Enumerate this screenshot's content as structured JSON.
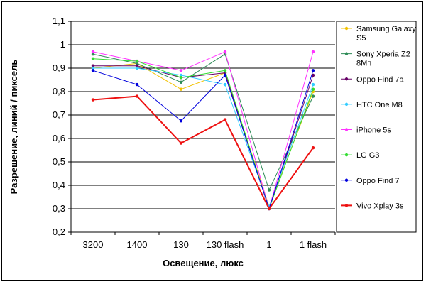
{
  "chart_data": {
    "type": "line",
    "xlabel": "Освещение, люкс",
    "ylabel": "Разрешение, линий / пиксель",
    "categories": [
      "3200",
      "1400",
      "130",
      "130 flash",
      "1",
      "1 flash"
    ],
    "ylim": [
      0.2,
      1.1
    ],
    "ytick_step": 0.1,
    "ytick_labels": [
      "0,2",
      "0,3",
      "0,4",
      "0,5",
      "0,6",
      "0,7",
      "0,8",
      "0,9",
      "1",
      "1,1"
    ],
    "grid": "horizontal",
    "legend_position": "right",
    "series": [
      {
        "name": "Samsung Galaxy S5",
        "color": "#f2c200",
        "width": 1,
        "values": [
          0.9,
          0.92,
          0.81,
          0.88,
          0.31,
          0.8
        ]
      },
      {
        "name": "Sony Xperia Z2 8Мп",
        "color": "#2e8b57",
        "width": 1,
        "values": [
          0.96,
          0.92,
          0.84,
          0.96,
          0.38,
          0.78
        ]
      },
      {
        "name": "Oppo Find 7a",
        "color": "#660066",
        "width": 1,
        "values": [
          0.91,
          0.91,
          0.86,
          0.88,
          0.3,
          0.87
        ]
      },
      {
        "name": "HTC One M8",
        "color": "#33ccff",
        "width": 1,
        "values": [
          0.9,
          0.9,
          0.87,
          0.83,
          0.31,
          0.83
        ]
      },
      {
        "name": "iPhone 5s",
        "color": "#ff33ff",
        "width": 1,
        "values": [
          0.97,
          0.93,
          0.89,
          0.97,
          0.3,
          0.97
        ]
      },
      {
        "name": "LG G3",
        "color": "#33dd33",
        "width": 1,
        "values": [
          0.94,
          0.93,
          0.86,
          0.89,
          0.3,
          0.81
        ]
      },
      {
        "name": "Oppo Find 7",
        "color": "#0000dd",
        "width": 1,
        "values": [
          0.89,
          0.83,
          0.675,
          0.87,
          0.3,
          0.89
        ]
      },
      {
        "name": "Vivo Xplay 3s",
        "color": "#ee1111",
        "width": 2,
        "values": [
          0.765,
          0.78,
          0.58,
          0.68,
          0.3,
          0.56
        ]
      }
    ]
  }
}
